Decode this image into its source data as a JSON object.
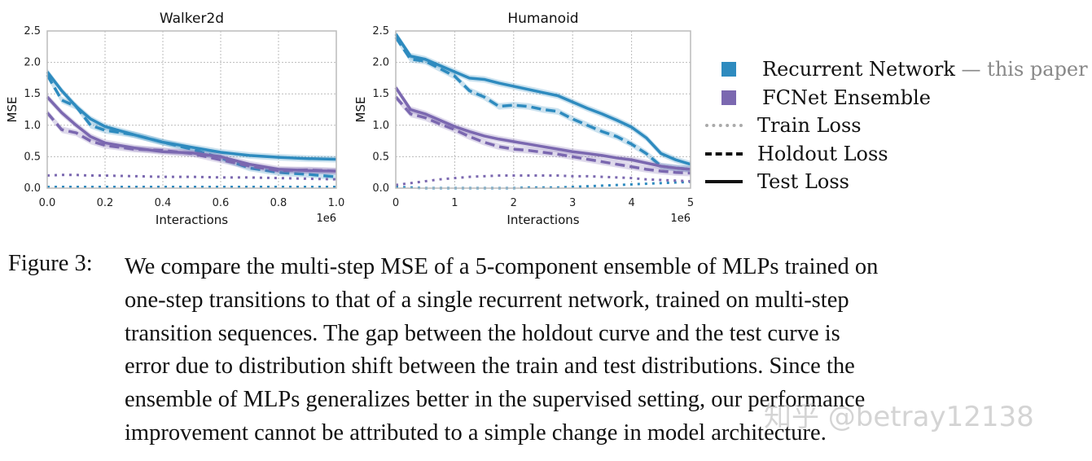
{
  "colors": {
    "recurrent": "#2e8bbf",
    "fcnet": "#7b68b0",
    "grid": "#bbbbbb"
  },
  "chart_data": [
    {
      "type": "line",
      "title": "Walker2d",
      "xlabel": "Interactions",
      "ylabel": "MSE",
      "x_multiplier_label": "1e6",
      "xlim": [
        0,
        1.0
      ],
      "ylim": [
        0,
        2.5
      ],
      "xticks": [
        "0.0",
        "0.2",
        "0.4",
        "0.6",
        "0.8",
        "1.0"
      ],
      "yticks": [
        "0.0",
        "0.5",
        "1.0",
        "1.5",
        "2.0",
        "2.5"
      ],
      "grid": true,
      "x": [
        0,
        0.05,
        0.1,
        0.15,
        0.2,
        0.3,
        0.4,
        0.5,
        0.6,
        0.7,
        0.8,
        0.9,
        1.0
      ],
      "series": [
        {
          "model": "Recurrent Network",
          "loss": "Test Loss",
          "values": [
            1.85,
            1.55,
            1.3,
            1.1,
            0.98,
            0.85,
            0.73,
            0.65,
            0.57,
            0.52,
            0.49,
            0.47,
            0.46
          ]
        },
        {
          "model": "Recurrent Network",
          "loss": "Holdout Loss",
          "values": [
            1.8,
            1.4,
            1.3,
            1.0,
            0.92,
            0.85,
            0.73,
            0.62,
            0.48,
            0.32,
            0.25,
            0.22,
            0.18
          ]
        },
        {
          "model": "Recurrent Network",
          "loss": "Train Loss",
          "values": [
            0.02,
            0.02,
            0.02,
            0.02,
            0.02,
            0.02,
            0.02,
            0.02,
            0.02,
            0.02,
            0.02,
            0.02,
            0.02
          ]
        },
        {
          "model": "FCNet Ensemble",
          "loss": "Test Loss",
          "values": [
            1.45,
            1.2,
            1.0,
            0.82,
            0.72,
            0.64,
            0.58,
            0.56,
            0.5,
            0.38,
            0.3,
            0.28,
            0.27
          ]
        },
        {
          "model": "FCNet Ensemble",
          "loss": "Holdout Loss",
          "values": [
            1.2,
            0.93,
            0.88,
            0.75,
            0.68,
            0.62,
            0.6,
            0.55,
            0.45,
            0.35,
            0.28,
            0.29,
            0.27
          ]
        },
        {
          "model": "FCNet Ensemble",
          "loss": "Train Loss",
          "values": [
            0.2,
            0.21,
            0.21,
            0.2,
            0.2,
            0.19,
            0.18,
            0.18,
            0.17,
            0.17,
            0.16,
            0.15,
            0.14
          ]
        }
      ]
    },
    {
      "type": "line",
      "title": "Humanoid",
      "xlabel": "Interactions",
      "ylabel": "MSE",
      "x_multiplier_label": "1e6",
      "xlim": [
        0,
        5
      ],
      "ylim": [
        0,
        2.5
      ],
      "xticks": [
        "0",
        "1",
        "2",
        "3",
        "4",
        "5"
      ],
      "yticks": [
        "0.0",
        "0.5",
        "1.0",
        "1.5",
        "2.0",
        "2.5"
      ],
      "grid": true,
      "x": [
        0,
        0.25,
        0.5,
        0.75,
        1,
        1.25,
        1.5,
        1.75,
        2,
        2.25,
        2.5,
        2.75,
        3,
        3.25,
        3.5,
        3.75,
        4,
        4.25,
        4.5,
        4.75,
        5
      ],
      "series": [
        {
          "model": "Recurrent Network",
          "loss": "Test Loss",
          "values": [
            2.45,
            2.1,
            2.05,
            1.95,
            1.85,
            1.75,
            1.73,
            1.67,
            1.62,
            1.57,
            1.52,
            1.47,
            1.37,
            1.27,
            1.18,
            1.08,
            0.97,
            0.8,
            0.55,
            0.45,
            0.38
          ]
        },
        {
          "model": "Recurrent Network",
          "loss": "Holdout Loss",
          "values": [
            2.4,
            2.05,
            2.02,
            1.9,
            1.78,
            1.55,
            1.45,
            1.3,
            1.32,
            1.3,
            1.25,
            1.22,
            1.1,
            1.0,
            0.9,
            0.82,
            0.7,
            0.55,
            0.35,
            0.32,
            0.3
          ]
        },
        {
          "model": "Recurrent Network",
          "loss": "Train Loss",
          "values": [
            0.02,
            0.01,
            0,
            0,
            0,
            0,
            0,
            0,
            0,
            0.01,
            0.01,
            0.01,
            0.02,
            0.03,
            0.04,
            0.05,
            0.06,
            0.07,
            0.08,
            0.09,
            0.1
          ]
        },
        {
          "model": "FCNet Ensemble",
          "loss": "Test Loss",
          "values": [
            1.6,
            1.25,
            1.18,
            1.08,
            0.98,
            0.9,
            0.83,
            0.78,
            0.74,
            0.7,
            0.66,
            0.62,
            0.58,
            0.55,
            0.52,
            0.48,
            0.45,
            0.4,
            0.35,
            0.32,
            0.3
          ]
        },
        {
          "model": "FCNet Ensemble",
          "loss": "Holdout Loss",
          "values": [
            1.45,
            1.18,
            1.12,
            1.02,
            0.93,
            0.82,
            0.73,
            0.66,
            0.62,
            0.6,
            0.57,
            0.54,
            0.5,
            0.46,
            0.42,
            0.38,
            0.34,
            0.3,
            0.27,
            0.25,
            0.24
          ]
        },
        {
          "model": "FCNet Ensemble",
          "loss": "Train Loss",
          "values": [
            0.05,
            0.08,
            0.11,
            0.14,
            0.16,
            0.18,
            0.19,
            0.2,
            0.2,
            0.2,
            0.2,
            0.2,
            0.19,
            0.19,
            0.18,
            0.17,
            0.16,
            0.14,
            0.13,
            0.12,
            0.11
          ]
        }
      ]
    }
  ],
  "legend": {
    "placement": "right",
    "recurrent": "Recurrent Network",
    "recurrent_note": "— this paper",
    "fcnet": "FCNet Ensemble",
    "train": "Train Loss",
    "holdout": "Holdout Loss",
    "test": "Test Loss"
  },
  "caption": {
    "label": "Figure 3:",
    "lines": [
      "We compare the multi-step MSE of a 5-component ensemble of MLPs trained on",
      "one-step transitions to that of a single recurrent network, trained on multi-step",
      "transition sequences. The gap between the holdout curve and the test curve is",
      "error due to distribution shift between the train and test distributions. Since the",
      "ensemble of MLPs generalizes better in the supervised setting, our performance",
      "improvement cannot be attributed to a simple change in model architecture."
    ]
  },
  "watermark": "知乎 @betray12138"
}
